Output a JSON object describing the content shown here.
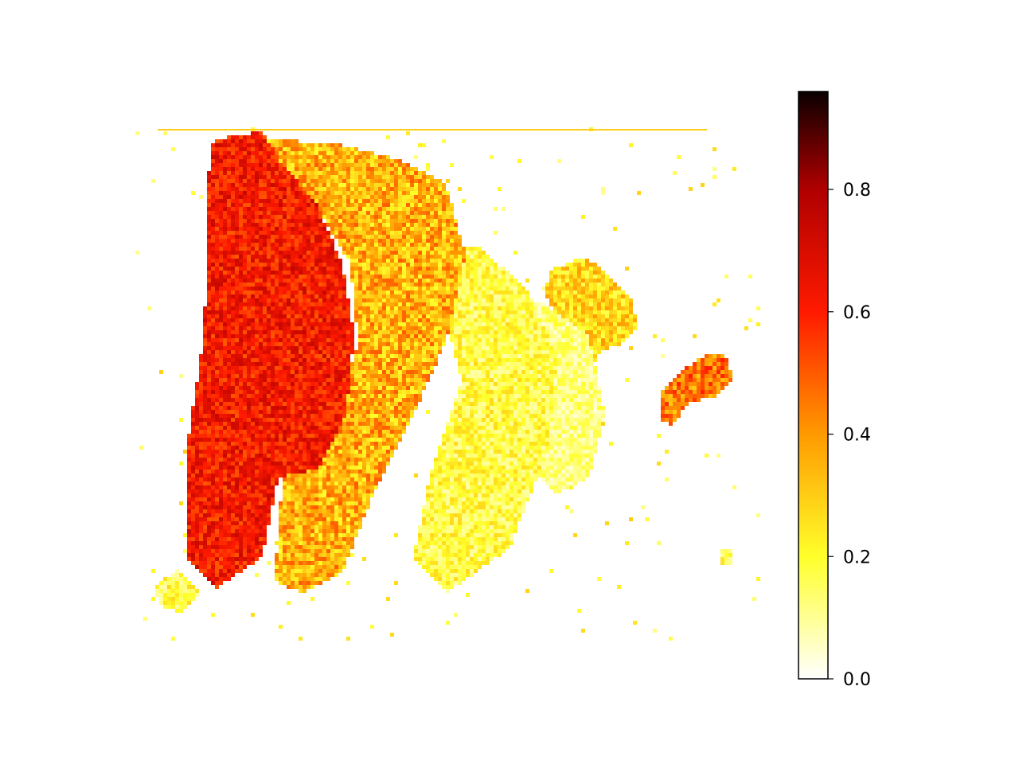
{
  "chart_data": {
    "type": "heatmap",
    "title": "",
    "xlabel": "",
    "ylabel": "",
    "axes_visible": false,
    "colormap": "hot_r",
    "colormap_stops": [
      {
        "value": 0.0,
        "color": "#ffffff"
      },
      {
        "value": 0.2,
        "color": "#ffff2a"
      },
      {
        "value": 0.4,
        "color": "#ff9a00"
      },
      {
        "value": 0.6,
        "color": "#ff1a00"
      },
      {
        "value": 0.8,
        "color": "#b00000"
      },
      {
        "value": 0.96,
        "color": "#0a0000"
      }
    ],
    "colorbar": {
      "range": [
        0.0,
        0.96
      ],
      "ticks": [
        0.0,
        0.2,
        0.4,
        0.6,
        0.8
      ],
      "tick_labels": [
        "0.0",
        "0.2",
        "0.4",
        "0.6",
        "0.8"
      ],
      "position": "right"
    },
    "image_description_regions": [
      {
        "id": "left-tissue-core",
        "level": 0.62,
        "noise": 0.12
      },
      {
        "id": "left-tissue-mixed",
        "level": 0.35,
        "noise": 0.15
      },
      {
        "id": "mid-fibrous",
        "level": 0.18,
        "noise": 0.1
      },
      {
        "id": "center-strands",
        "level": 0.12,
        "noise": 0.08
      },
      {
        "id": "right-blob-upper",
        "level": 0.28,
        "noise": 0.12
      },
      {
        "id": "right-blob-far",
        "level": 0.45,
        "noise": 0.15
      }
    ]
  }
}
